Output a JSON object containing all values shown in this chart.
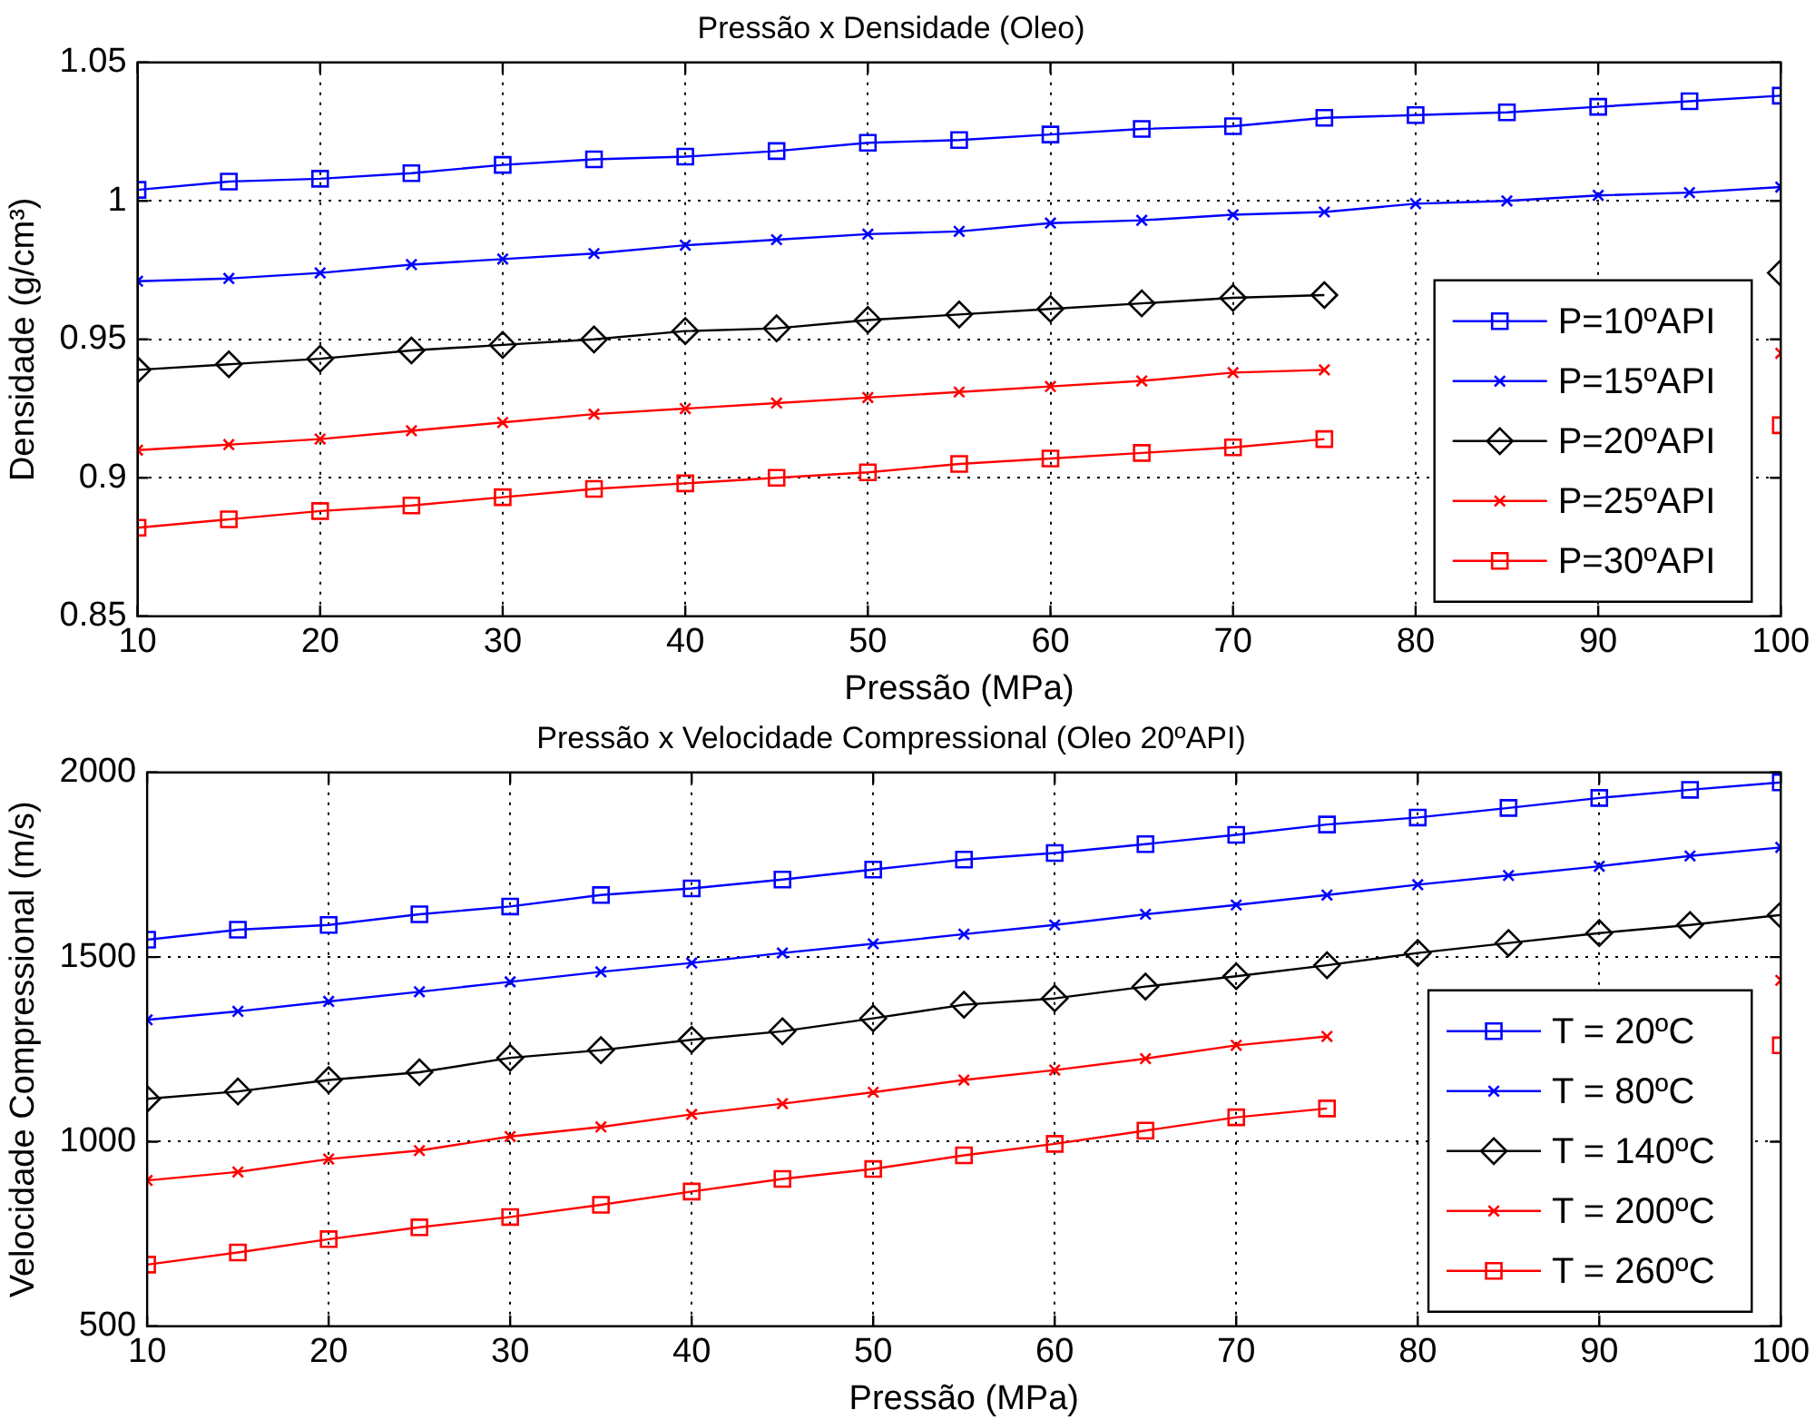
{
  "chart_data": [
    {
      "type": "line",
      "title": "Pressão x Densidade (Oleo)",
      "xlabel": "Pressão (MPa)",
      "ylabel": "Densidade (g/cm³)",
      "x": [
        10,
        15,
        20,
        25,
        30,
        35,
        40,
        45,
        50,
        55,
        60,
        65,
        70,
        75,
        80,
        85,
        90,
        95,
        100
      ],
      "xlim": [
        10,
        100
      ],
      "xticks": [
        10,
        20,
        30,
        40,
        50,
        60,
        70,
        80,
        90,
        100
      ],
      "ylim": [
        0.85,
        1.05
      ],
      "yticks": [
        0.85,
        0.9,
        0.95,
        1,
        1.05
      ],
      "grid": true,
      "legend": "bottom right",
      "line_style": "solid",
      "series": [
        {
          "name": "P=10ºAPI",
          "color": "#0000ff",
          "marker": "square",
          "values": [
            1.004,
            1.007,
            1.008,
            1.01,
            1.013,
            1.015,
            1.016,
            1.018,
            1.021,
            1.022,
            1.024,
            1.026,
            1.027,
            1.03,
            1.031,
            1.032,
            1.034,
            1.036,
            1.038
          ]
        },
        {
          "name": "P=15ºAPI",
          "color": "#0000ff",
          "marker": "cross",
          "values": [
            0.971,
            0.972,
            0.974,
            0.977,
            0.979,
            0.981,
            0.984,
            0.986,
            0.988,
            0.989,
            0.992,
            0.993,
            0.995,
            0.996,
            0.999,
            1.0,
            1.002,
            1.003,
            1.005
          ]
        },
        {
          "name": "P=20ºAPI",
          "color": "#000000",
          "marker": "diamond",
          "values": [
            0.939,
            0.941,
            0.943,
            0.946,
            0.948,
            0.95,
            0.953,
            0.954,
            0.957,
            0.959,
            0.961,
            0.963,
            0.965,
            0.966,
            null,
            null,
            null,
            null,
            0.974
          ]
        },
        {
          "name": "P=25ºAPI",
          "color": "#ff0000",
          "marker": "cross",
          "values": [
            0.91,
            0.912,
            0.914,
            0.917,
            0.92,
            0.923,
            0.925,
            0.927,
            0.929,
            0.931,
            0.933,
            0.935,
            0.938,
            0.939,
            null,
            null,
            null,
            null,
            0.945
          ]
        },
        {
          "name": "P=30ºAPI",
          "color": "#ff0000",
          "marker": "square",
          "values": [
            0.882,
            0.885,
            0.888,
            0.89,
            0.893,
            0.896,
            0.898,
            0.9,
            0.902,
            0.905,
            0.907,
            0.909,
            0.911,
            0.914,
            null,
            null,
            null,
            null,
            0.919
          ]
        }
      ]
    },
    {
      "type": "line",
      "title": "Pressão x Velocidade Compressional (Oleo 20ºAPI)",
      "xlabel": "Pressão (MPa)",
      "ylabel": "Velocidade Compressional (m/s)",
      "x": [
        10,
        15,
        20,
        25,
        30,
        35,
        40,
        45,
        50,
        55,
        60,
        65,
        70,
        75,
        80,
        85,
        90,
        95,
        100
      ],
      "xlim": [
        10,
        100
      ],
      "xticks": [
        10,
        20,
        30,
        40,
        50,
        60,
        70,
        80,
        90,
        100
      ],
      "ylim": [
        500,
        2000
      ],
      "yticks": [
        500,
        1000,
        1500,
        2000
      ],
      "grid": true,
      "legend": "bottom right",
      "line_style": "solid",
      "series": [
        {
          "name": "T = 20ºC",
          "color": "#0000ff",
          "marker": "square",
          "values": [
            1547,
            1574,
            1587,
            1616,
            1637,
            1668,
            1686,
            1710,
            1737,
            1764,
            1782,
            1806,
            1831,
            1859,
            1878,
            1904,
            1931,
            1953,
            1973
          ]
        },
        {
          "name": "T = 80ºC",
          "color": "#0000ff",
          "marker": "cross",
          "values": [
            1330,
            1353,
            1380,
            1406,
            1433,
            1460,
            1484,
            1511,
            1536,
            1562,
            1587,
            1616,
            1641,
            1668,
            1696,
            1721,
            1746,
            1774,
            1797
          ]
        },
        {
          "name": "T = 140ºC",
          "color": "#000000",
          "marker": "diamond",
          "values": [
            1116,
            1136,
            1167,
            1188,
            1227,
            1248,
            1276,
            1299,
            1334,
            1371,
            1388,
            1420,
            1448,
            1478,
            1511,
            1538,
            1565,
            1587,
            1614
          ]
        },
        {
          "name": "T = 200ºC",
          "color": "#ff0000",
          "marker": "cross",
          "values": [
            895,
            918,
            953,
            976,
            1014,
            1040,
            1074,
            1103,
            1134,
            1167,
            1194,
            1225,
            1261,
            1285,
            null,
            null,
            null,
            null,
            1437
          ]
        },
        {
          "name": "T = 260ºC",
          "color": "#ff0000",
          "marker": "square",
          "values": [
            667,
            700,
            736,
            768,
            796,
            829,
            865,
            899,
            926,
            963,
            994,
            1030,
            1066,
            1090,
            null,
            null,
            null,
            null,
            1261
          ]
        }
      ]
    }
  ]
}
